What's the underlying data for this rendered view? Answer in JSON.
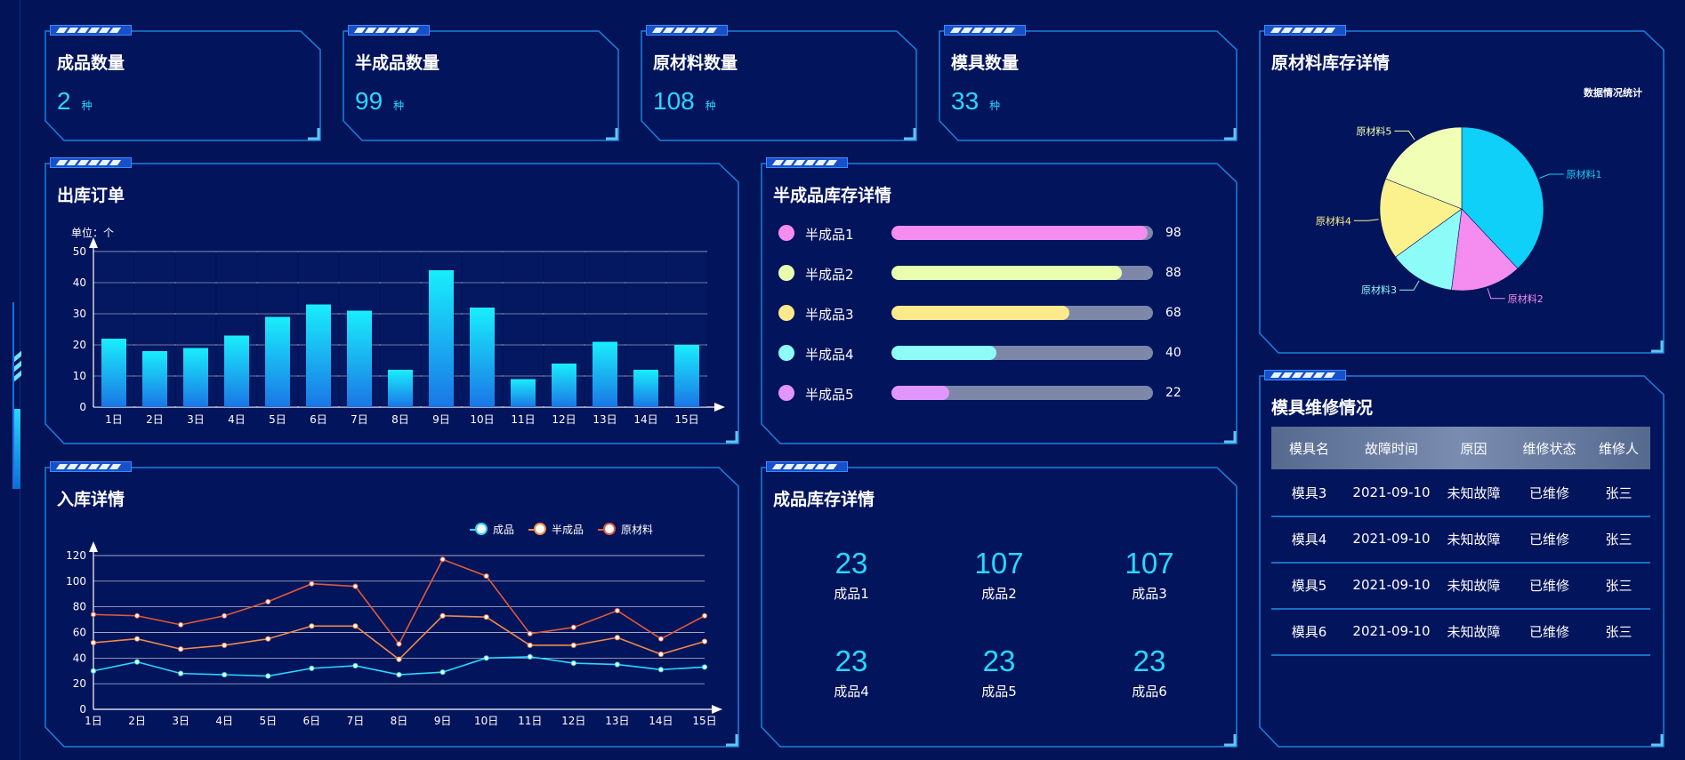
{
  "kpis": [
    {
      "title": "成品数量",
      "value": "2",
      "unit": "种"
    },
    {
      "title": "半成品数量",
      "value": "99",
      "unit": "种"
    },
    {
      "title": "原材料数量",
      "value": "108",
      "unit": "种"
    },
    {
      "title": "模具数量",
      "value": "33",
      "unit": "种"
    }
  ],
  "outbound": {
    "title": "出库订单",
    "unit_label": "单位：个"
  },
  "semi_stock": {
    "title": "半成品库存详情",
    "max": 100,
    "items": [
      {
        "name": "半成品1",
        "value": 98,
        "value_label": "98",
        "color": "#f58cf0"
      },
      {
        "name": "半成品2",
        "value": 88,
        "value_label": "88",
        "color": "#e9ffb0"
      },
      {
        "name": "半成品3",
        "value": 68,
        "value_label": "68",
        "color": "#fce98c"
      },
      {
        "name": "半成品4",
        "value": 40,
        "value_label": "40",
        "color": "#8dfbf8"
      },
      {
        "name": "半成品5",
        "value": 22,
        "value_label": "22",
        "color": "#e096fc"
      }
    ]
  },
  "inbound": {
    "title": "入库详情",
    "legend": [
      "成品",
      "半成品",
      "原材料"
    ]
  },
  "finished_stock": {
    "title": "成品库存详情",
    "items": [
      {
        "value": "23",
        "label": "成品1"
      },
      {
        "value": "107",
        "label": "成品2"
      },
      {
        "value": "107",
        "label": "成品3"
      },
      {
        "value": "23",
        "label": "成品4"
      },
      {
        "value": "23",
        "label": "成品5"
      },
      {
        "value": "23",
        "label": "成品6"
      }
    ]
  },
  "raw_stock": {
    "title": "原材料库存详情",
    "subtitle": "数据情况统计"
  },
  "mold_repair": {
    "title": "模具维修情况",
    "columns": [
      "模具名",
      "故障时间",
      "原因",
      "维修状态",
      "维修人"
    ],
    "rows": [
      [
        "模具3",
        "2021-09-10",
        "未知故障",
        "已维修",
        "张三"
      ],
      [
        "模具4",
        "2021-09-10",
        "未知故障",
        "已维修",
        "张三"
      ],
      [
        "模具5",
        "2021-09-10",
        "未知故障",
        "已维修",
        "张三"
      ],
      [
        "模具6",
        "2021-09-10",
        "未知故障",
        "已维修",
        "张三"
      ]
    ]
  },
  "colors": {
    "background": "#021357",
    "frame": "#1c7fe0",
    "accent": "#27d8ff"
  },
  "chart_data": [
    {
      "type": "bar",
      "categories": [
        "1日",
        "2日",
        "3日",
        "4日",
        "5日",
        "6日",
        "7日",
        "8日",
        "9日",
        "10日",
        "11日",
        "12日",
        "13日",
        "14日",
        "15日"
      ],
      "values": [
        22,
        18,
        19,
        23,
        29,
        33,
        31,
        12,
        44,
        32,
        9,
        14,
        21,
        12,
        20
      ],
      "ylim": [
        0,
        50
      ],
      "yticks": [
        0,
        10,
        20,
        30,
        40,
        50
      ],
      "grid": true,
      "legend": "none"
    },
    {
      "type": "line",
      "x": [
        "1日",
        "2日",
        "3日",
        "4日",
        "5日",
        "6日",
        "7日",
        "8日",
        "9日",
        "10日",
        "11日",
        "12日",
        "13日",
        "14日",
        "15日"
      ],
      "ylim": [
        0,
        120
      ],
      "yticks": [
        0,
        20,
        40,
        60,
        80,
        100,
        120
      ],
      "grid": true,
      "legend": "top-right",
      "series": [
        {
          "name": "成品",
          "color": "#27d8ff",
          "values": [
            30,
            37,
            28,
            27,
            26,
            32,
            34,
            27,
            29,
            40,
            41,
            36,
            35,
            31,
            33
          ]
        },
        {
          "name": "半成品",
          "color": "#f08a4b",
          "values": [
            52,
            55,
            47,
            50,
            55,
            65,
            65,
            39,
            73,
            72,
            50,
            50,
            56,
            43,
            53
          ]
        },
        {
          "name": "原材料",
          "color": "#e05a3a",
          "values": [
            74,
            73,
            66,
            73,
            84,
            98,
            96,
            51,
            117,
            104,
            59,
            64,
            77,
            55,
            73
          ]
        }
      ]
    },
    {
      "type": "pie",
      "slices": [
        {
          "name": "原材料1",
          "value": 38,
          "color": "#0fd0f8"
        },
        {
          "name": "原材料2",
          "value": 14,
          "color": "#f58cf0"
        },
        {
          "name": "原材料3",
          "value": 13,
          "color": "#8dfbf8"
        },
        {
          "name": "原材料4",
          "value": 16,
          "color": "#fbf28e"
        },
        {
          "name": "原材料5",
          "value": 19,
          "color": "#f0ffb5"
        }
      ],
      "legend": "none"
    }
  ]
}
